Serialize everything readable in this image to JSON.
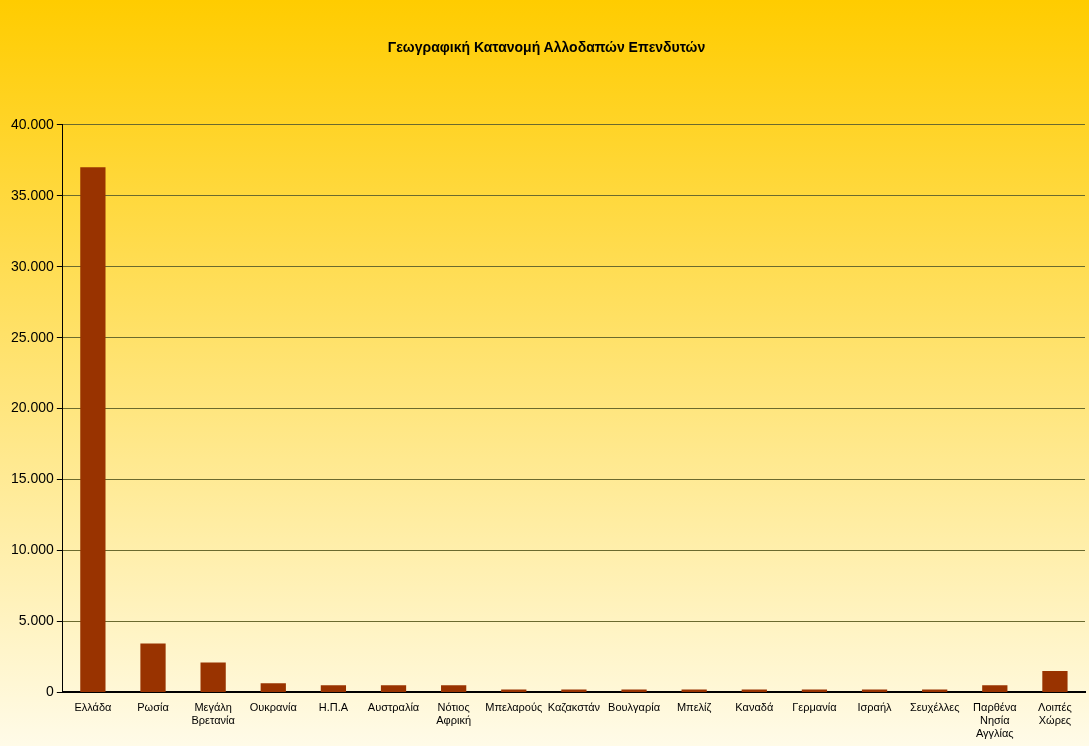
{
  "chart_data": {
    "type": "bar",
    "title": "Γεωγραφική Κατανομή Αλλοδαπών Επενδυτών",
    "categories": [
      "Ελλάδα",
      "Ρωσία",
      "Μεγάλη Βρετανία",
      "Ουκρανία",
      "Η.Π.Α",
      "Αυστραλία",
      "Νότιος Αφρική",
      "Μπελαρούς",
      "Καζακστάν",
      "Βουλγαρία",
      "Μπελίζ",
      "Καναδά",
      "Γερμανία",
      "Ισραήλ",
      "Σευχέλλες",
      "Παρθένα Νησία Αγγλίας",
      "Λοιπές Χώρες"
    ],
    "values": [
      37000,
      3450,
      2100,
      650,
      500,
      500,
      500,
      200,
      200,
      200,
      200,
      200,
      200,
      200,
      200,
      500,
      1500
    ],
    "color": "#993300",
    "ylim": [
      0,
      40000
    ],
    "yticks": [
      {
        "value": 0,
        "label": "0"
      },
      {
        "value": 5000,
        "label": "5.000"
      },
      {
        "value": 10000,
        "label": "10.000"
      },
      {
        "value": 15000,
        "label": "15.000"
      },
      {
        "value": 20000,
        "label": "20.000"
      },
      {
        "value": 25000,
        "label": "25.000"
      },
      {
        "value": 30000,
        "label": "30.000"
      },
      {
        "value": 35000,
        "label": "35.000"
      },
      {
        "value": 40000,
        "label": "40.000"
      }
    ],
    "grid": "y",
    "legend": false
  }
}
